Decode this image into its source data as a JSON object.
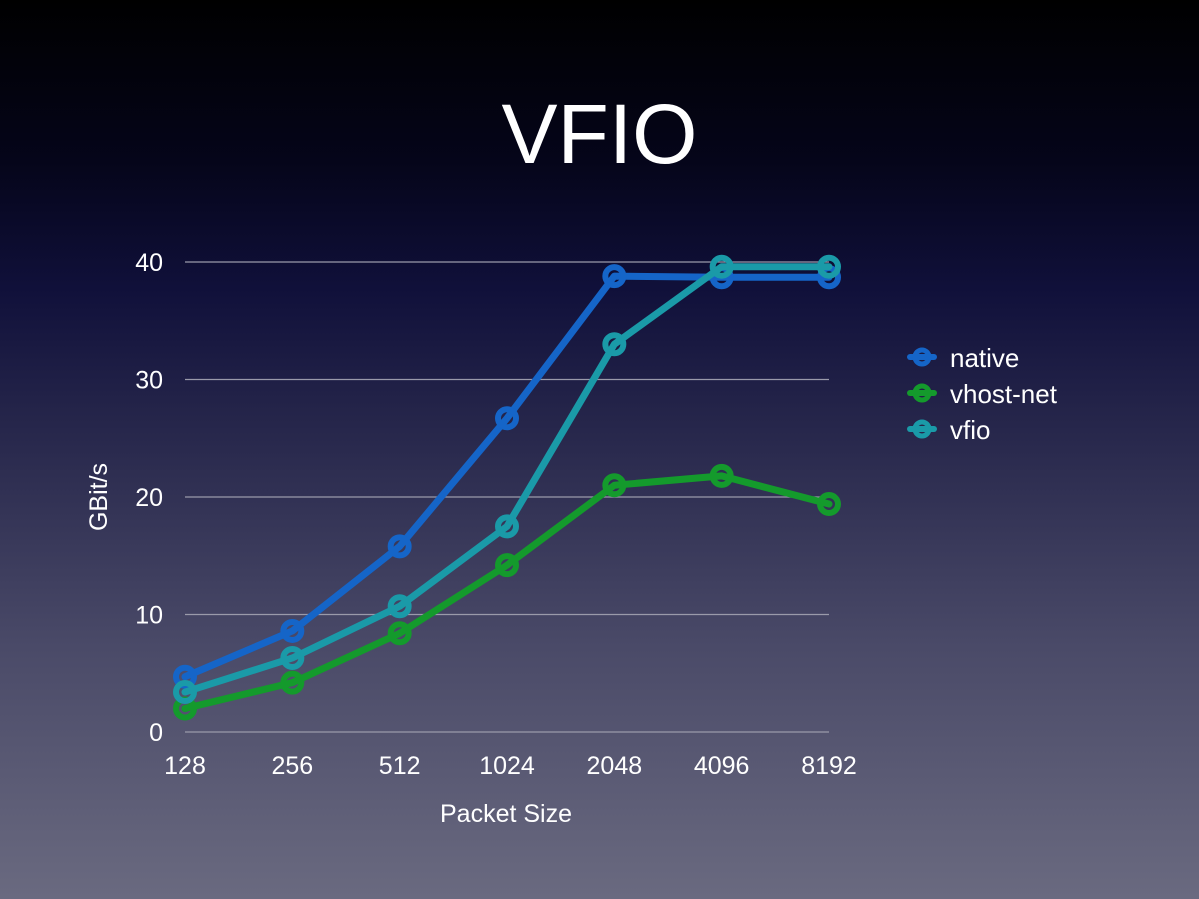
{
  "slide": {
    "title": "VFIO"
  },
  "chart_data": {
    "type": "line",
    "title": "",
    "xlabel": "Packet Size",
    "ylabel": "GBit/s",
    "categories": [
      "128",
      "256",
      "512",
      "1024",
      "2048",
      "4096",
      "8192"
    ],
    "ylim": [
      0,
      40
    ],
    "yticks": [
      "0",
      "10",
      "20",
      "30",
      "40"
    ],
    "grid": true,
    "legend_position": "right",
    "series": [
      {
        "name": "native",
        "color": "#1565c8",
        "values": [
          4.7,
          8.6,
          15.8,
          26.7,
          38.8,
          38.7,
          38.7
        ]
      },
      {
        "name": "vhost-net",
        "color": "#149a2c",
        "values": [
          2.0,
          4.2,
          8.4,
          14.2,
          21.0,
          21.8,
          19.4
        ]
      },
      {
        "name": "vfio",
        "color": "#1a9aa8",
        "values": [
          3.4,
          6.3,
          10.7,
          17.5,
          33.0,
          39.6,
          39.6
        ]
      }
    ]
  }
}
